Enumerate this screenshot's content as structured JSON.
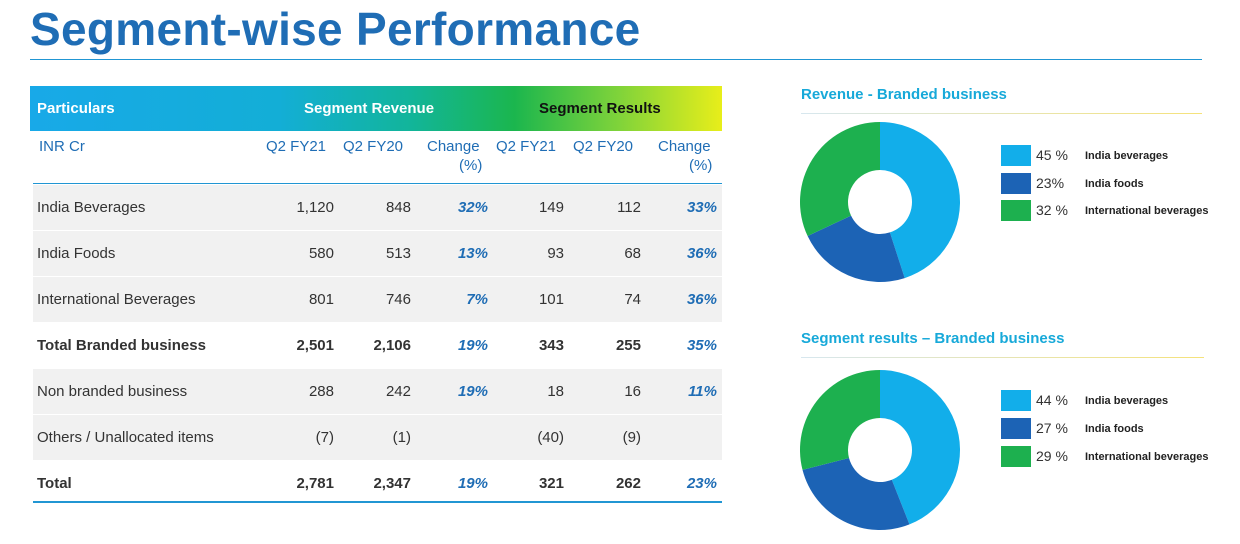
{
  "page_title": "Segment-wise Performance",
  "table": {
    "header": {
      "particulars": "Particulars",
      "segment_revenue": "Segment Revenue",
      "segment_results": "Segment Results"
    },
    "subheader": {
      "unit": "INR Cr",
      "rev_q2fy21": "Q2 FY21",
      "rev_q2fy20": "Q2 FY20",
      "rev_change_1": "Change",
      "rev_change_2": "(%)",
      "res_q2fy21": "Q2 FY21",
      "res_q2fy20": "Q2 FY20",
      "res_change_1": "Change",
      "res_change_2": "(%)"
    },
    "rows": [
      {
        "label": "India Beverages",
        "rev_fy21": "1,120",
        "rev_fy20": "848",
        "rev_change": "32%",
        "res_fy21": "149",
        "res_fy20": "112",
        "res_change": "33%"
      },
      {
        "label": "India Foods",
        "rev_fy21": "580",
        "rev_fy20": "513",
        "rev_change": "13%",
        "res_fy21": "93",
        "res_fy20": "68",
        "res_change": "36%"
      },
      {
        "label": "International Beverages",
        "rev_fy21": "801",
        "rev_fy20": "746",
        "rev_change": "7%",
        "res_fy21": "101",
        "res_fy20": "74",
        "res_change": "36%"
      },
      {
        "label": "Total Branded business",
        "rev_fy21": "2,501",
        "rev_fy20": "2,106",
        "rev_change": "19%",
        "res_fy21": "343",
        "res_fy20": "255",
        "res_change": "35%"
      },
      {
        "label": "Non branded business",
        "rev_fy21": "288",
        "rev_fy20": "242",
        "rev_change": "19%",
        "res_fy21": "18",
        "res_fy20": "16",
        "res_change": "11%"
      },
      {
        "label": "Others / Unallocated items",
        "rev_fy21": "(7)",
        "rev_fy20": "(1)",
        "rev_change": "",
        "res_fy21": "(40)",
        "res_fy20": "(9)",
        "res_change": ""
      },
      {
        "label": "Total",
        "rev_fy21": "2,781",
        "rev_fy20": "2,347",
        "rev_change": "19%",
        "res_fy21": "321",
        "res_fy20": "262",
        "res_change": "23%"
      }
    ]
  },
  "colors": {
    "india_beverages": "#12aeea",
    "india_foods": "#1c63b5",
    "international_beverages": "#1db04f",
    "accent_blue": "#1f6db5"
  },
  "chart_data": [
    {
      "type": "pie",
      "title": "Revenue - Branded business",
      "categories": [
        "India beverages",
        "India foods",
        "International beverages"
      ],
      "values": [
        45,
        23,
        32
      ],
      "value_labels": [
        "45 %",
        "23%",
        "32 %"
      ],
      "colors": [
        "#12aeea",
        "#1c63b5",
        "#1db04f"
      ],
      "donut": true,
      "legend": "right"
    },
    {
      "type": "pie",
      "title": "Segment results – Branded business",
      "categories": [
        "India beverages",
        "India foods",
        "International beverages"
      ],
      "values": [
        44,
        27,
        29
      ],
      "value_labels": [
        "44 %",
        "27 %",
        "29 %"
      ],
      "colors": [
        "#12aeea",
        "#1c63b5",
        "#1db04f"
      ],
      "donut": true,
      "legend": "right"
    }
  ]
}
